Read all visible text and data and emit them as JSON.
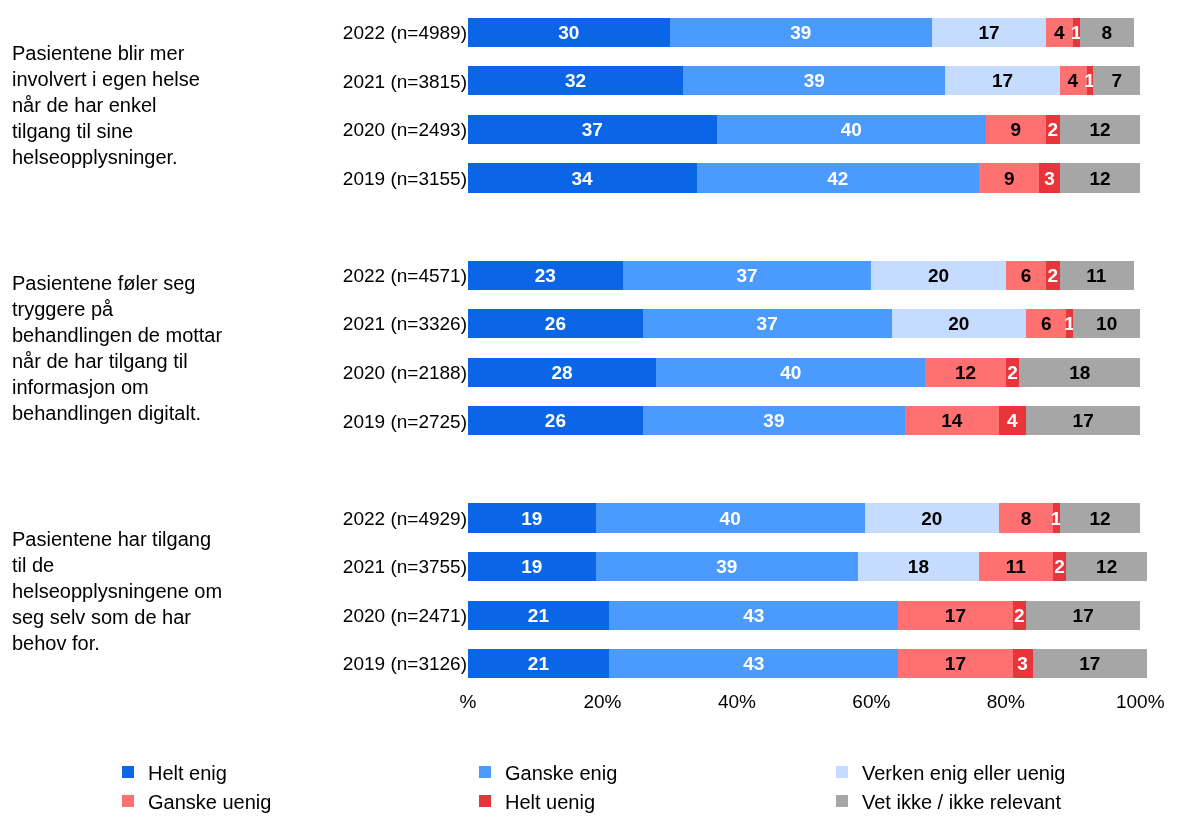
{
  "chart_data": {
    "type": "bar",
    "orientation": "horizontal",
    "stacked": true,
    "data_labels": true,
    "legend": "bottom",
    "categories": [
      "2022 (n=4989)",
      "2021 (n=3815)",
      "2020 (n=2493)",
      "2019 (n=3155)",
      null,
      "2022 (n=4571)",
      "2021 (n=3326)",
      "2020 (n=2188)",
      "2019 (n=2725)",
      null,
      "2022 (n=4929)",
      "2021 (n=3755)",
      "2020 (n=2471)",
      "2019 (n=3126)"
    ],
    "series": [
      {
        "name": "Helt enig",
        "color": "#0a66e6",
        "values": [
          30,
          32,
          37,
          34,
          null,
          23,
          26,
          28,
          26,
          null,
          19,
          19,
          21,
          21
        ]
      },
      {
        "name": "Ganske enig",
        "color": "#4b9bff",
        "values": [
          39,
          39,
          40,
          42,
          null,
          37,
          37,
          40,
          39,
          null,
          40,
          39,
          43,
          43
        ]
      },
      {
        "name": "Verken enig eller uenig",
        "color": "#c5dbff",
        "values": [
          17,
          17,
          null,
          null,
          null,
          20,
          20,
          null,
          null,
          null,
          20,
          18,
          null,
          null
        ]
      },
      {
        "name": "Ganske uenig",
        "color": "#ff7070",
        "values": [
          4,
          4,
          9,
          9,
          null,
          6,
          6,
          12,
          14,
          null,
          8,
          11,
          17,
          17
        ]
      },
      {
        "name": "Helt uenig",
        "color": "#e8353b",
        "values": [
          1,
          1,
          2,
          3,
          null,
          2,
          1,
          2,
          4,
          null,
          1,
          2,
          2,
          3
        ]
      },
      {
        "name": "Vet ikke / ikke relevant",
        "color": "#a6a6a6",
        "values": [
          8,
          7,
          12,
          12,
          null,
          11,
          10,
          18,
          17,
          null,
          12,
          12,
          17,
          17
        ]
      }
    ],
    "xlim": [
      0,
      101
    ],
    "xticks": [
      {
        "value": 0,
        "label": "%"
      },
      {
        "value": 20,
        "label": "20%"
      },
      {
        "value": 40,
        "label": "40%"
      },
      {
        "value": 60,
        "label": "60%"
      },
      {
        "value": 80,
        "label": "80%"
      },
      {
        "value": 100,
        "label": "100%"
      }
    ],
    "annotations": [
      "Pasientene blir mer involvert i egen helse når de har enkel tilgang til sine helseopplysninger.",
      "Pasientene føler seg tryggere på behandlingen de mottar når de har tilgang til informasjon om behandlingen digitalt.",
      "Pasientene har tilgang til de helseopplysningene om seg selv som de har behov for."
    ]
  }
}
